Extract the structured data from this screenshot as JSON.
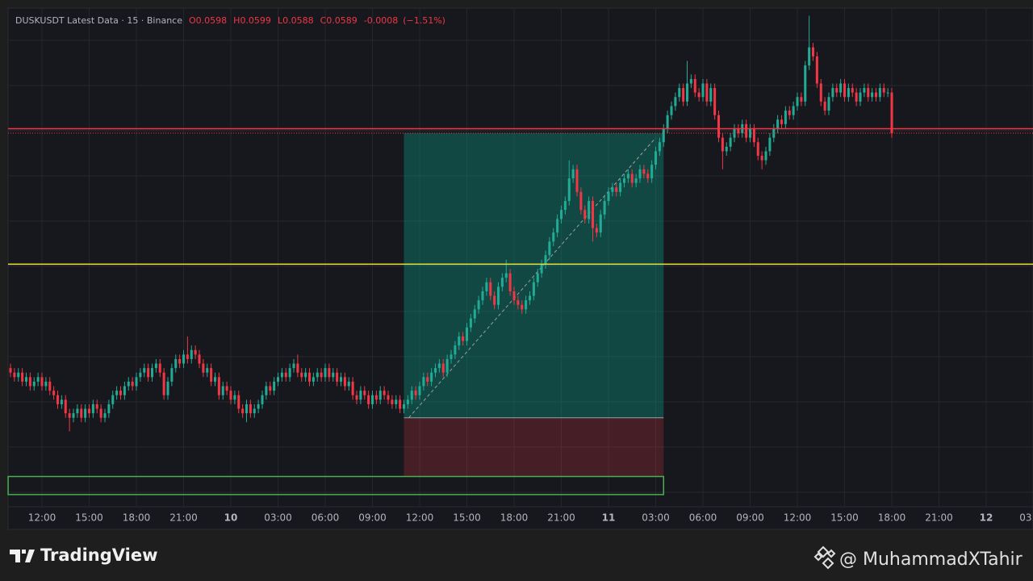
{
  "header": {
    "title": "DUSKUSDT Latest Data · 15 · Binance",
    "ohlc_labels": [
      "O",
      "H",
      "L",
      "C"
    ],
    "open": 0.0598,
    "high": 0.0599,
    "low": 0.0588,
    "close": 0.0589,
    "change": -0.0008,
    "change_pct": {
      "value": -1.51,
      "label": "(−1.51%)"
    }
  },
  "chart_data": {
    "type": "candlestick",
    "up_color": "#22ab94",
    "down_color": "#f23645",
    "grid": true,
    "xlim": [
      9.846,
      74.974
    ],
    "ylim": [
      0.05063,
      0.06167
    ],
    "xticks": [
      {
        "value": 12,
        "label": "12:00"
      },
      {
        "value": 15,
        "label": "15:00"
      },
      {
        "value": 18,
        "label": "18:00"
      },
      {
        "value": 21,
        "label": "21:00"
      },
      {
        "value": 24,
        "label": "10"
      },
      {
        "value": 27,
        "label": "03:00"
      },
      {
        "value": 30,
        "label": "06:00"
      },
      {
        "value": 33,
        "label": "09:00"
      },
      {
        "value": 36,
        "label": "12:00"
      },
      {
        "value": 39,
        "label": "15:00"
      },
      {
        "value": 42,
        "label": "18:00"
      },
      {
        "value": 45,
        "label": "21:00"
      },
      {
        "value": 48,
        "label": "11"
      },
      {
        "value": 51,
        "label": "03:00"
      },
      {
        "value": 54,
        "label": "06:00"
      },
      {
        "value": 57,
        "label": "09:00"
      },
      {
        "value": 60,
        "label": "12:00"
      },
      {
        "value": 63,
        "label": "15:00"
      },
      {
        "value": 66,
        "label": "18:00"
      },
      {
        "value": 69,
        "label": "21:00"
      },
      {
        "value": 72,
        "label": "12"
      },
      {
        "value": 75,
        "label": "03:00"
      }
    ],
    "x": [
      10,
      10.25,
      10.5,
      10.75,
      11,
      11.25,
      11.5,
      11.75,
      12,
      12.25,
      12.5,
      12.75,
      13,
      13.25,
      13.5,
      13.75,
      14,
      14.25,
      14.5,
      14.75,
      15,
      15.25,
      15.5,
      15.75,
      16,
      16.25,
      16.5,
      16.75,
      17,
      17.25,
      17.5,
      17.75,
      18,
      18.25,
      18.5,
      18.75,
      19,
      19.25,
      19.5,
      19.75,
      20,
      20.25,
      20.5,
      20.75,
      21,
      21.25,
      21.5,
      21.75,
      22,
      22.25,
      22.5,
      22.75,
      23,
      23.25,
      23.5,
      23.75,
      24,
      24.25,
      24.5,
      24.75,
      25,
      25.25,
      25.5,
      25.75,
      26,
      26.25,
      26.5,
      26.75,
      27,
      27.25,
      27.5,
      27.75,
      28,
      28.25,
      28.5,
      28.75,
      29,
      29.25,
      29.5,
      29.75,
      30,
      30.25,
      30.5,
      30.75,
      31,
      31.25,
      31.5,
      31.75,
      32,
      32.25,
      32.5,
      32.75,
      33,
      33.25,
      33.5,
      33.75,
      34,
      34.25,
      34.5,
      34.75,
      35,
      35.25,
      35.5,
      35.75,
      36,
      36.25,
      36.5,
      36.75,
      37,
      37.25,
      37.5,
      37.75,
      38,
      38.25,
      38.5,
      38.75,
      39,
      39.25,
      39.5,
      39.75,
      40,
      40.25,
      40.5,
      40.75,
      41,
      41.25,
      41.5,
      41.75,
      42,
      42.25,
      42.5,
      42.75,
      43,
      43.25,
      43.5,
      43.75,
      44,
      44.25,
      44.5,
      44.75,
      45,
      45.25,
      45.5,
      45.75,
      46,
      46.25,
      46.5,
      46.75,
      47,
      47.25,
      47.5,
      47.75,
      48,
      48.25,
      48.5,
      48.75,
      49,
      49.25,
      49.5,
      49.75,
      50,
      50.25,
      50.5,
      50.75,
      51,
      51.25,
      51.5,
      51.75,
      52,
      52.25,
      52.5,
      52.75,
      53,
      53.25,
      53.5,
      53.75,
      54,
      54.25,
      54.5,
      54.75,
      55,
      55.25,
      55.5,
      55.75,
      56,
      56.25,
      56.5,
      56.75,
      57,
      57.25,
      57.5,
      57.75,
      58,
      58.25,
      58.5,
      58.75,
      59,
      59.25,
      59.5,
      59.75,
      60,
      60.25,
      60.5,
      60.75,
      61,
      61.25,
      61.5,
      61.75,
      62,
      62.25,
      62.5,
      62.75,
      63,
      63.25,
      63.5,
      63.75,
      64,
      64.25,
      64.5,
      64.75,
      65,
      65.25,
      65.5,
      65.75,
      66
    ],
    "open": [
      0.0537,
      0.0536,
      0.0535,
      0.0536,
      0.0534,
      0.0535,
      0.0533,
      0.0534,
      0.0535,
      0.0533,
      0.0534,
      0.0532,
      0.0531,
      0.0529,
      0.053,
      0.0527,
      0.0526,
      0.0527,
      0.0528,
      0.0526,
      0.0528,
      0.0527,
      0.0529,
      0.0528,
      0.0526,
      0.0527,
      0.0529,
      0.0531,
      0.0532,
      0.0531,
      0.0533,
      0.0534,
      0.0533,
      0.0535,
      0.0536,
      0.0537,
      0.0535,
      0.0537,
      0.0538,
      0.0536,
      0.0531,
      0.0534,
      0.0537,
      0.0539,
      0.0538,
      0.054,
      0.0539,
      0.0541,
      0.054,
      0.0538,
      0.0536,
      0.0537,
      0.0534,
      0.0535,
      0.0531,
      0.0533,
      0.0532,
      0.053,
      0.0531,
      0.0528,
      0.0527,
      0.0529,
      0.0527,
      0.0528,
      0.0529,
      0.0531,
      0.0533,
      0.0532,
      0.0534,
      0.0535,
      0.0536,
      0.0535,
      0.0537,
      0.0538,
      0.0536,
      0.0535,
      0.0536,
      0.0534,
      0.0535,
      0.0536,
      0.0535,
      0.0537,
      0.0535,
      0.0536,
      0.0534,
      0.0535,
      0.0533,
      0.0534,
      0.0531,
      0.053,
      0.0532,
      0.0531,
      0.0529,
      0.0531,
      0.053,
      0.0532,
      0.0531,
      0.053,
      0.0529,
      0.053,
      0.0528,
      0.0529,
      0.053,
      0.0532,
      0.0531,
      0.0533,
      0.0535,
      0.0534,
      0.0536,
      0.0537,
      0.0538,
      0.0536,
      0.0539,
      0.054,
      0.0542,
      0.0544,
      0.0543,
      0.0546,
      0.0548,
      0.055,
      0.0552,
      0.0554,
      0.0556,
      0.0553,
      0.0551,
      0.0555,
      0.0557,
      0.0558,
      0.0554,
      0.0552,
      0.0551,
      0.055,
      0.0552,
      0.0553,
      0.0556,
      0.0558,
      0.056,
      0.0562,
      0.0565,
      0.0567,
      0.057,
      0.0572,
      0.0574,
      0.0579,
      0.0581,
      0.0576,
      0.0572,
      0.057,
      0.0574,
      0.0568,
      0.0567,
      0.0571,
      0.0574,
      0.0576,
      0.0577,
      0.0576,
      0.0578,
      0.0579,
      0.058,
      0.0578,
      0.0579,
      0.0581,
      0.058,
      0.0579,
      0.0582,
      0.0585,
      0.0587,
      0.059,
      0.0593,
      0.0595,
      0.0597,
      0.0599,
      0.0596,
      0.06,
      0.0601,
      0.0598,
      0.0597,
      0.06,
      0.0596,
      0.0599,
      0.0593,
      0.0588,
      0.0585,
      0.0586,
      0.0588,
      0.059,
      0.0589,
      0.0591,
      0.0588,
      0.059,
      0.0587,
      0.0584,
      0.0583,
      0.0585,
      0.0588,
      0.059,
      0.0592,
      0.0591,
      0.0594,
      0.0593,
      0.0595,
      0.0597,
      0.0596,
      0.0604,
      0.0608,
      0.0606,
      0.06,
      0.0596,
      0.0594,
      0.0597,
      0.0599,
      0.0598,
      0.06,
      0.0597,
      0.0599,
      0.0598,
      0.0596,
      0.0598,
      0.0599,
      0.0597,
      0.0598,
      0.0597,
      0.0599,
      0.0598,
      0.0598
    ],
    "high": [
      0.0538,
      0.0537,
      0.0537,
      0.0537,
      0.0536,
      0.0536,
      0.0535,
      0.0536,
      0.0536,
      0.0535,
      0.0535,
      0.0533,
      0.0532,
      0.0531,
      0.0531,
      0.0528,
      0.0528,
      0.0529,
      0.0529,
      0.0529,
      0.0529,
      0.053,
      0.053,
      0.0529,
      0.0528,
      0.053,
      0.0532,
      0.0533,
      0.0533,
      0.0534,
      0.0535,
      0.0535,
      0.0536,
      0.0537,
      0.0538,
      0.0538,
      0.0538,
      0.0539,
      0.0539,
      0.0537,
      0.0535,
      0.0538,
      0.054,
      0.054,
      0.0541,
      0.0544,
      0.0542,
      0.0542,
      0.0541,
      0.0539,
      0.0538,
      0.0538,
      0.0536,
      0.0536,
      0.0534,
      0.0534,
      0.0533,
      0.0532,
      0.0532,
      0.0529,
      0.053,
      0.053,
      0.0529,
      0.053,
      0.0532,
      0.0534,
      0.0534,
      0.0535,
      0.0536,
      0.0537,
      0.0537,
      0.0538,
      0.0539,
      0.054,
      0.0537,
      0.0537,
      0.0537,
      0.0536,
      0.0537,
      0.0537,
      0.0538,
      0.0538,
      0.0537,
      0.0537,
      0.0536,
      0.0536,
      0.0535,
      0.0535,
      0.0532,
      0.0533,
      0.0533,
      0.0532,
      0.0532,
      0.0532,
      0.0533,
      0.0533,
      0.0532,
      0.0531,
      0.0531,
      0.0531,
      0.053,
      0.0531,
      0.0533,
      0.0533,
      0.0534,
      0.0536,
      0.0536,
      0.0537,
      0.0538,
      0.0539,
      0.0539,
      0.054,
      0.0541,
      0.0543,
      0.0545,
      0.0545,
      0.0547,
      0.0549,
      0.0551,
      0.0553,
      0.0555,
      0.0557,
      0.0557,
      0.0554,
      0.0556,
      0.0558,
      0.0561,
      0.0559,
      0.0555,
      0.0553,
      0.0552,
      0.0553,
      0.0554,
      0.0557,
      0.0559,
      0.0561,
      0.0563,
      0.0566,
      0.0568,
      0.0571,
      0.0573,
      0.0575,
      0.0583,
      0.0582,
      0.0582,
      0.0577,
      0.0573,
      0.0575,
      0.0575,
      0.0569,
      0.0572,
      0.0575,
      0.0577,
      0.0578,
      0.0578,
      0.0579,
      0.058,
      0.0581,
      0.0581,
      0.058,
      0.0582,
      0.0582,
      0.0581,
      0.0583,
      0.0586,
      0.0588,
      0.0591,
      0.0594,
      0.0596,
      0.0598,
      0.06,
      0.06,
      0.0605,
      0.0602,
      0.0602,
      0.0599,
      0.0601,
      0.0601,
      0.06,
      0.06,
      0.0594,
      0.0589,
      0.0587,
      0.0589,
      0.0591,
      0.0591,
      0.0592,
      0.0592,
      0.0591,
      0.0591,
      0.0588,
      0.0585,
      0.0586,
      0.0589,
      0.0591,
      0.0593,
      0.0593,
      0.0595,
      0.0595,
      0.0596,
      0.0598,
      0.0598,
      0.0605,
      0.0615,
      0.0609,
      0.0607,
      0.0601,
      0.0597,
      0.0598,
      0.06,
      0.06,
      0.0601,
      0.0601,
      0.06,
      0.06,
      0.0599,
      0.0599,
      0.06,
      0.06,
      0.0599,
      0.0599,
      0.06,
      0.06,
      0.0599,
      0.0599
    ],
    "low": [
      0.0535,
      0.0534,
      0.0534,
      0.0533,
      0.0533,
      0.0532,
      0.0532,
      0.0533,
      0.0532,
      0.0532,
      0.0531,
      0.053,
      0.0528,
      0.0528,
      0.0526,
      0.0523,
      0.0525,
      0.0526,
      0.0525,
      0.0525,
      0.0526,
      0.0526,
      0.0527,
      0.0525,
      0.0525,
      0.0526,
      0.0528,
      0.053,
      0.053,
      0.053,
      0.0532,
      0.0532,
      0.0532,
      0.0534,
      0.0535,
      0.0534,
      0.0534,
      0.0536,
      0.0535,
      0.053,
      0.053,
      0.0533,
      0.0536,
      0.0537,
      0.0537,
      0.0538,
      0.0538,
      0.0539,
      0.0537,
      0.0535,
      0.0535,
      0.0533,
      0.0533,
      0.053,
      0.053,
      0.0531,
      0.0529,
      0.0529,
      0.0527,
      0.0526,
      0.0525,
      0.0526,
      0.0526,
      0.0527,
      0.0528,
      0.053,
      0.0531,
      0.0531,
      0.0533,
      0.0534,
      0.0534,
      0.0534,
      0.0536,
      0.0535,
      0.0534,
      0.0534,
      0.0533,
      0.0533,
      0.0534,
      0.0534,
      0.0534,
      0.0534,
      0.0534,
      0.0533,
      0.0533,
      0.0532,
      0.0532,
      0.053,
      0.0529,
      0.0529,
      0.053,
      0.0528,
      0.0528,
      0.0529,
      0.0529,
      0.053,
      0.0529,
      0.0528,
      0.0528,
      0.0527,
      0.0527,
      0.0528,
      0.0529,
      0.053,
      0.053,
      0.0532,
      0.0533,
      0.0533,
      0.0535,
      0.0536,
      0.0535,
      0.0535,
      0.0538,
      0.0539,
      0.0541,
      0.0542,
      0.0542,
      0.0545,
      0.0547,
      0.0549,
      0.0551,
      0.0553,
      0.0552,
      0.055,
      0.055,
      0.0554,
      0.0556,
      0.0553,
      0.0551,
      0.055,
      0.0549,
      0.0549,
      0.0551,
      0.0552,
      0.0555,
      0.0557,
      0.0559,
      0.0561,
      0.0564,
      0.0566,
      0.0569,
      0.0571,
      0.0573,
      0.0578,
      0.0575,
      0.0571,
      0.0569,
      0.0569,
      0.0565,
      0.0566,
      0.0566,
      0.057,
      0.0573,
      0.0575,
      0.0575,
      0.0575,
      0.0577,
      0.0578,
      0.0577,
      0.0577,
      0.0578,
      0.0579,
      0.0578,
      0.0578,
      0.0581,
      0.0584,
      0.0586,
      0.0589,
      0.0592,
      0.0594,
      0.0596,
      0.0595,
      0.0595,
      0.0599,
      0.0597,
      0.0596,
      0.0596,
      0.0595,
      0.0595,
      0.0592,
      0.0587,
      0.0581,
      0.0584,
      0.0585,
      0.0587,
      0.0588,
      0.0588,
      0.0587,
      0.0587,
      0.0586,
      0.0583,
      0.0581,
      0.0582,
      0.0584,
      0.0587,
      0.0589,
      0.059,
      0.059,
      0.0592,
      0.0592,
      0.0594,
      0.0595,
      0.0595,
      0.0603,
      0.0605,
      0.0599,
      0.0595,
      0.0593,
      0.0593,
      0.0596,
      0.0597,
      0.0597,
      0.0596,
      0.0596,
      0.0597,
      0.0595,
      0.0595,
      0.0597,
      0.0596,
      0.0596,
      0.0596,
      0.0596,
      0.0597,
      0.0597,
      0.0588
    ],
    "close": [
      0.0536,
      0.0535,
      0.0536,
      0.0534,
      0.0535,
      0.0533,
      0.0534,
      0.0535,
      0.0533,
      0.0534,
      0.0532,
      0.0531,
      0.0529,
      0.053,
      0.0527,
      0.0526,
      0.0527,
      0.0528,
      0.0526,
      0.0528,
      0.0527,
      0.0529,
      0.0528,
      0.0526,
      0.0527,
      0.0529,
      0.0531,
      0.0532,
      0.0531,
      0.0533,
      0.0534,
      0.0533,
      0.0535,
      0.0536,
      0.0537,
      0.0535,
      0.0537,
      0.0538,
      0.0536,
      0.0531,
      0.0534,
      0.0537,
      0.0539,
      0.0538,
      0.054,
      0.0539,
      0.0541,
      0.054,
      0.0538,
      0.0536,
      0.0537,
      0.0534,
      0.0535,
      0.0531,
      0.0533,
      0.0532,
      0.053,
      0.0531,
      0.0528,
      0.0527,
      0.0529,
      0.0527,
      0.0528,
      0.0529,
      0.0531,
      0.0533,
      0.0532,
      0.0534,
      0.0535,
      0.0536,
      0.0535,
      0.0537,
      0.0538,
      0.0536,
      0.0535,
      0.0536,
      0.0534,
      0.0535,
      0.0536,
      0.0535,
      0.0537,
      0.0535,
      0.0536,
      0.0534,
      0.0535,
      0.0533,
      0.0534,
      0.0531,
      0.053,
      0.0532,
      0.0531,
      0.0529,
      0.0531,
      0.053,
      0.0532,
      0.0531,
      0.053,
      0.0529,
      0.053,
      0.0528,
      0.0529,
      0.053,
      0.0532,
      0.0531,
      0.0533,
      0.0535,
      0.0534,
      0.0536,
      0.0537,
      0.0538,
      0.0536,
      0.0539,
      0.054,
      0.0542,
      0.0544,
      0.0543,
      0.0546,
      0.0548,
      0.055,
      0.0552,
      0.0554,
      0.0556,
      0.0553,
      0.0551,
      0.0555,
      0.0557,
      0.0558,
      0.0554,
      0.0552,
      0.0551,
      0.055,
      0.0552,
      0.0553,
      0.0556,
      0.0558,
      0.056,
      0.0562,
      0.0565,
      0.0567,
      0.057,
      0.0572,
      0.0574,
      0.0579,
      0.0581,
      0.0576,
      0.0572,
      0.057,
      0.0574,
      0.0568,
      0.0567,
      0.0571,
      0.0574,
      0.0576,
      0.0577,
      0.0576,
      0.0578,
      0.0579,
      0.058,
      0.0578,
      0.0579,
      0.0581,
      0.058,
      0.0579,
      0.0582,
      0.0585,
      0.0587,
      0.059,
      0.0593,
      0.0595,
      0.0597,
      0.0599,
      0.0596,
      0.06,
      0.0601,
      0.0598,
      0.0597,
      0.06,
      0.0596,
      0.0599,
      0.0593,
      0.0588,
      0.0585,
      0.0586,
      0.0588,
      0.059,
      0.0589,
      0.0591,
      0.0588,
      0.059,
      0.0587,
      0.0584,
      0.0583,
      0.0585,
      0.0588,
      0.059,
      0.0592,
      0.0591,
      0.0594,
      0.0593,
      0.0595,
      0.0597,
      0.0596,
      0.0604,
      0.0608,
      0.0606,
      0.06,
      0.0596,
      0.0594,
      0.0597,
      0.0599,
      0.0598,
      0.06,
      0.0597,
      0.0599,
      0.0598,
      0.0596,
      0.0598,
      0.0599,
      0.0597,
      0.0598,
      0.0597,
      0.0599,
      0.0598,
      0.0598,
      0.0589
    ],
    "levels": [
      {
        "value": 0.059,
        "color": "#f23645"
      },
      {
        "value": 0.056,
        "color": "#e9e43a"
      }
    ],
    "last_price": 0.0589,
    "position": {
      "entry": 0.0526,
      "target": 0.0589,
      "stop": 0.0513,
      "x": [
        35,
        51.5
      ]
    },
    "zone": {
      "top": 0.0513,
      "bottom": 0.0509,
      "x": [
        9.85,
        51.5
      ],
      "color": "#4caf50"
    }
  },
  "footer": {
    "brand": "TradingView",
    "watermark": "@ MuhammadXTahir"
  }
}
